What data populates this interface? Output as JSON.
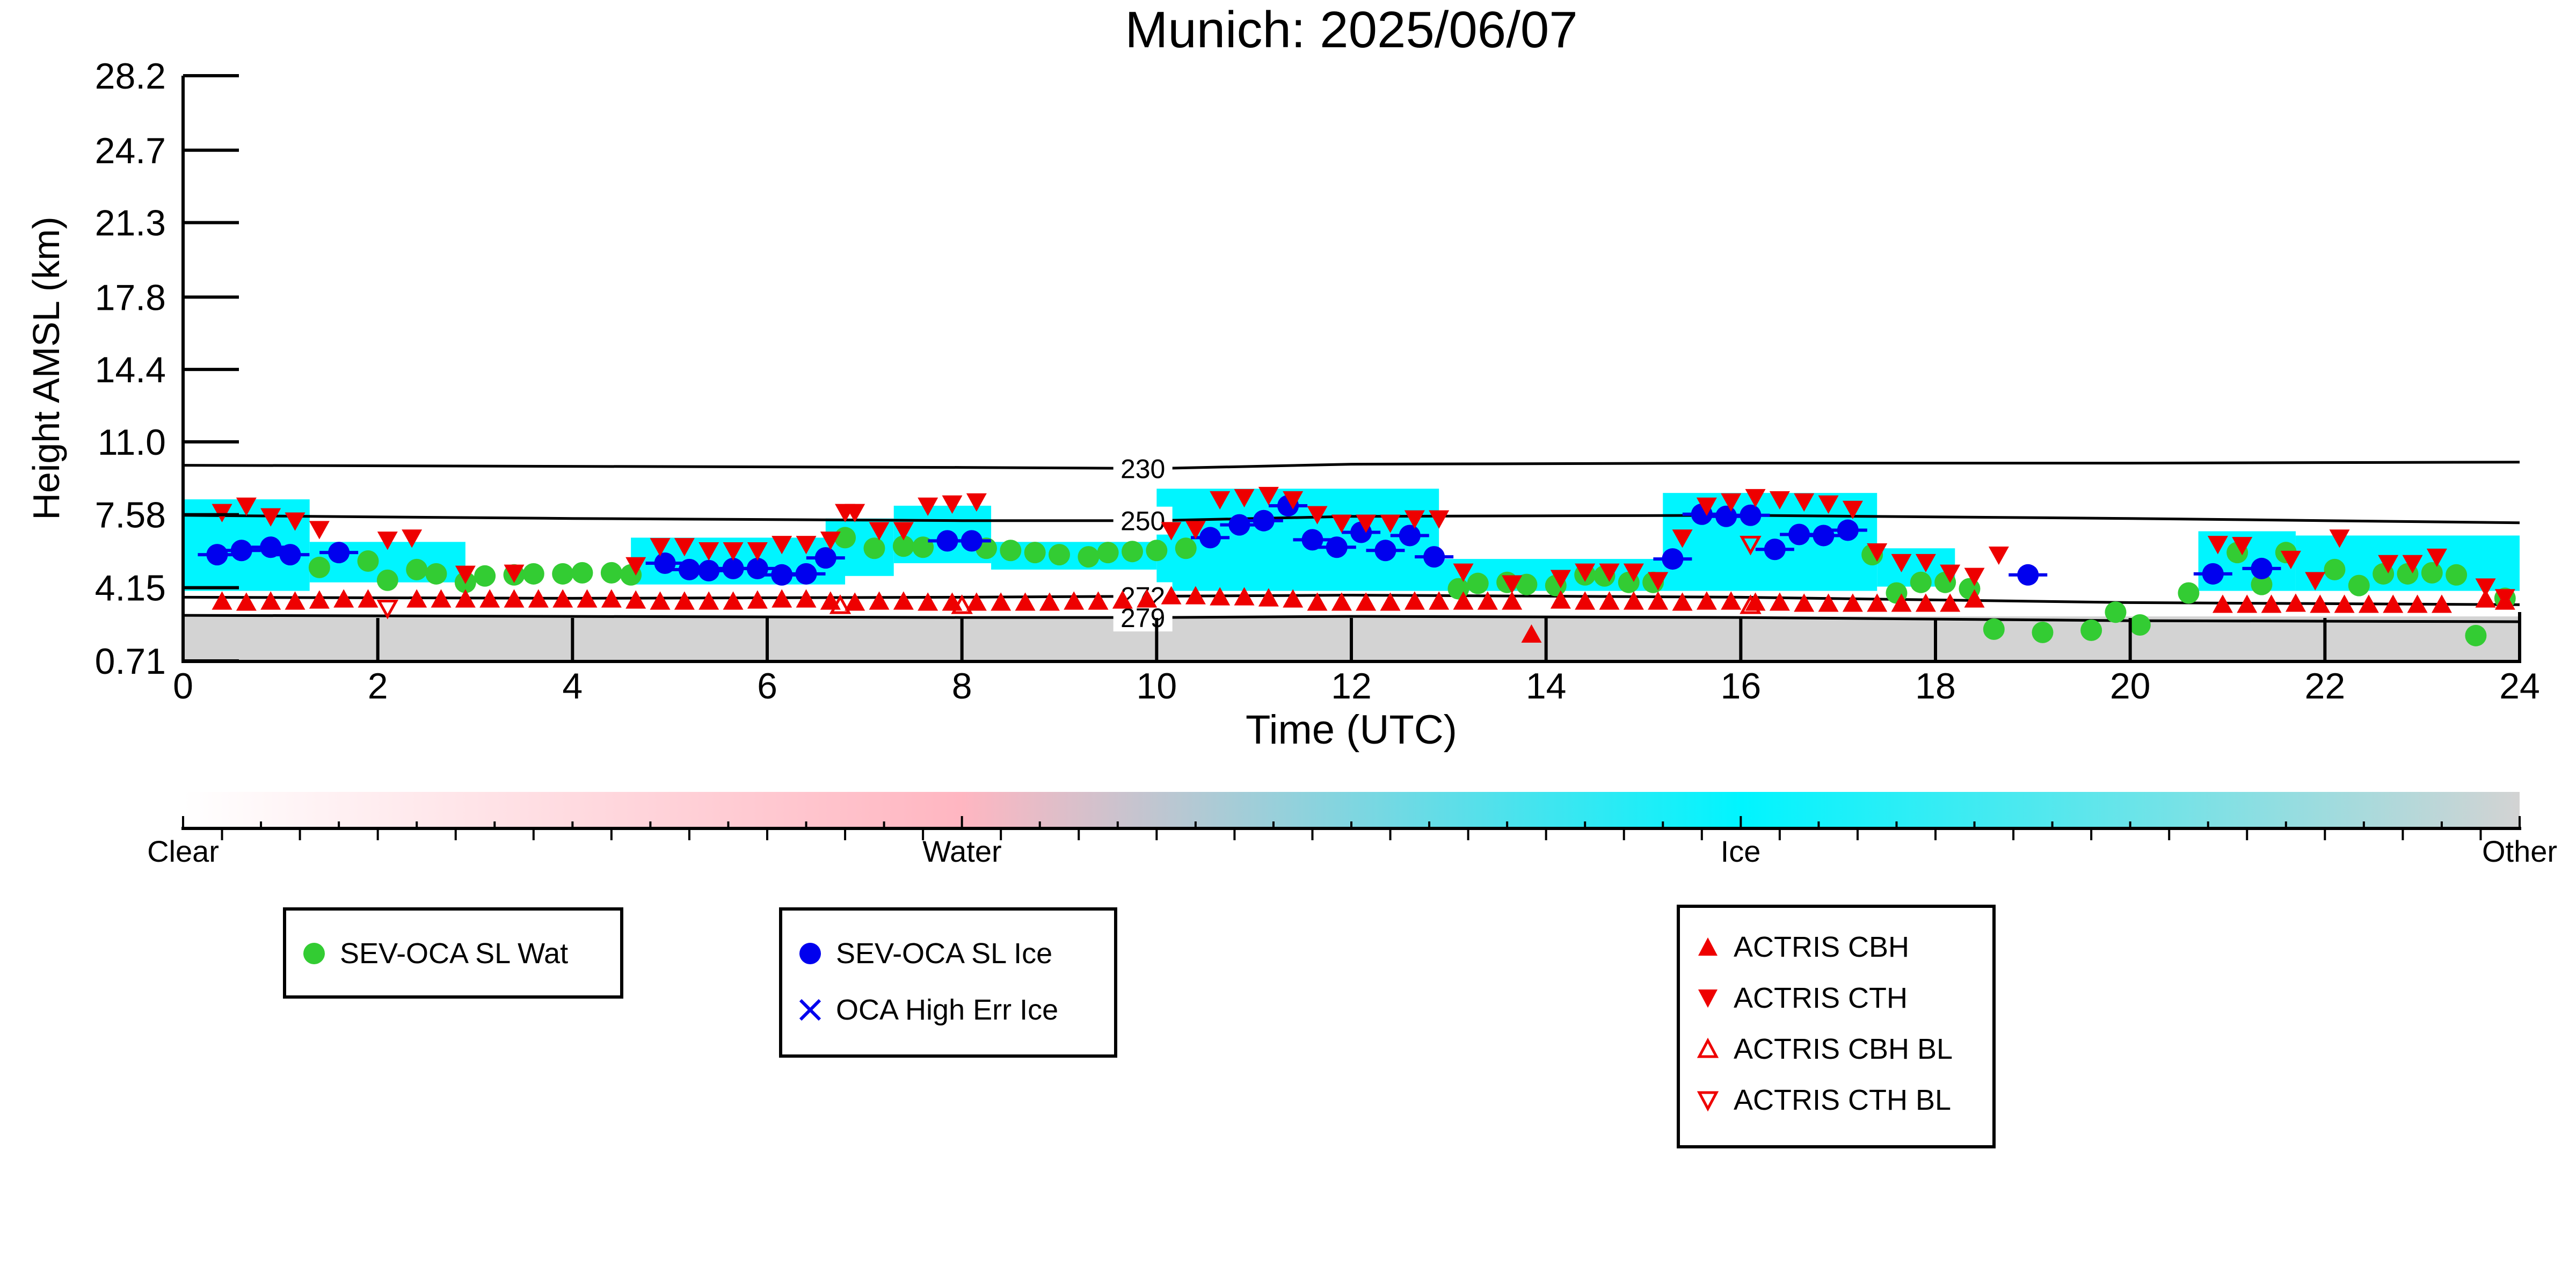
{
  "chart_data": {
    "type": "scatter",
    "title": "Munich: 2025/06/07",
    "xlabel": "Time (UTC)",
    "ylabel": "Height AMSL (km)",
    "xlim": [
      0,
      24
    ],
    "xticks": [
      0,
      2,
      4,
      6,
      8,
      10,
      12,
      14,
      16,
      18,
      20,
      22,
      24
    ],
    "yticks": [
      "0.71",
      "4.15",
      "7.58",
      "11.0",
      "14.4",
      "17.8",
      "21.3",
      "24.7",
      "28.2"
    ],
    "ylim": [
      0.71,
      28.2
    ],
    "colorbar": {
      "labels": [
        "Clear",
        "Water",
        "Ice",
        "Other"
      ],
      "colors": [
        "#ffffff",
        "#ffb6c1",
        "#00f5ff",
        "#d3d3d3"
      ]
    },
    "contours": [
      {
        "label": "230",
        "points": [
          [
            0,
            9.9
          ],
          [
            4,
            9.85
          ],
          [
            8,
            9.8
          ],
          [
            10,
            9.75
          ],
          [
            12,
            9.95
          ],
          [
            16,
            10.0
          ],
          [
            20,
            10.0
          ],
          [
            24,
            10.05
          ]
        ]
      },
      {
        "label": "250",
        "points": [
          [
            0,
            7.55
          ],
          [
            4,
            7.4
          ],
          [
            8,
            7.3
          ],
          [
            10,
            7.3
          ],
          [
            12,
            7.5
          ],
          [
            16,
            7.55
          ],
          [
            20,
            7.4
          ],
          [
            24,
            7.2
          ]
        ]
      },
      {
        "label": "272",
        "points": [
          [
            0,
            3.7
          ],
          [
            4,
            3.65
          ],
          [
            8,
            3.7
          ],
          [
            10,
            3.75
          ],
          [
            12,
            3.8
          ],
          [
            16,
            3.7
          ],
          [
            20,
            3.45
          ],
          [
            24,
            3.35
          ]
        ]
      },
      {
        "label": "279",
        "points": [
          [
            0,
            2.85
          ],
          [
            4,
            2.8
          ],
          [
            8,
            2.75
          ],
          [
            10,
            2.75
          ],
          [
            12,
            2.8
          ],
          [
            16,
            2.75
          ],
          [
            20,
            2.6
          ],
          [
            24,
            2.55
          ]
        ]
      }
    ],
    "series": [
      {
        "name": "SEV-OCA SL Wat",
        "color": "#33cc33",
        "marker": "circle",
        "x": [
          1.4,
          1.9,
          2.1,
          2.4,
          2.6,
          2.9,
          3.1,
          3.4,
          3.6,
          3.9,
          4.1,
          4.4,
          4.6,
          6.8,
          7.1,
          7.4,
          7.6,
          8.25,
          8.5,
          8.75,
          9.0,
          9.3,
          9.5,
          9.75,
          10.0,
          10.3,
          13.1,
          13.3,
          13.6,
          13.8,
          14.1,
          14.4,
          14.6,
          14.85,
          15.1,
          17.35,
          17.6,
          17.85,
          18.1,
          18.35,
          18.6,
          19.1,
          19.6,
          19.85,
          20.1,
          20.6,
          21.1,
          21.35,
          21.6,
          22.1,
          22.35,
          22.6,
          22.85,
          23.1,
          23.35,
          23.55,
          23.85
        ],
        "y": [
          5.1,
          5.4,
          4.5,
          5.0,
          4.8,
          4.4,
          4.7,
          4.75,
          4.8,
          4.8,
          4.85,
          4.85,
          4.75,
          6.5,
          6.0,
          6.1,
          6.05,
          6.0,
          5.9,
          5.8,
          5.7,
          5.6,
          5.8,
          5.85,
          5.9,
          6.0,
          4.1,
          4.35,
          4.4,
          4.3,
          4.25,
          4.75,
          4.7,
          4.4,
          4.4,
          5.7,
          3.9,
          4.4,
          4.4,
          4.1,
          2.2,
          2.05,
          2.15,
          3.0,
          2.4,
          3.9,
          5.8,
          4.3,
          5.8,
          5.0,
          4.25,
          4.8,
          4.8,
          4.85,
          4.75,
          1.9,
          3.65
        ]
      },
      {
        "name": "SEV-OCA SL Ice",
        "color": "#0000ee",
        "marker": "circle",
        "x": [
          0.35,
          0.6,
          0.9,
          1.1,
          1.6,
          4.95,
          5.2,
          5.4,
          5.65,
          5.9,
          6.15,
          6.4,
          6.6,
          7.85,
          8.1,
          10.55,
          10.85,
          11.1,
          11.35,
          11.6,
          11.85,
          12.1,
          12.35,
          12.6,
          12.85,
          15.3,
          15.6,
          15.85,
          16.1,
          16.35,
          16.6,
          16.85,
          17.1,
          18.95,
          20.85,
          21.35
        ],
        "y": [
          5.7,
          5.9,
          6.05,
          5.7,
          5.8,
          5.3,
          5.0,
          4.95,
          5.05,
          5.05,
          4.75,
          4.8,
          5.55,
          6.35,
          6.35,
          6.5,
          7.1,
          7.3,
          8.0,
          6.4,
          6.05,
          6.75,
          5.9,
          6.6,
          5.6,
          5.5,
          7.6,
          7.5,
          7.55,
          5.95,
          6.65,
          6.6,
          6.85,
          4.75,
          4.8,
          5.05
        ]
      },
      {
        "name": "OCA High Err Ice",
        "color": "#0000ee",
        "marker": "x",
        "x": [],
        "y": []
      },
      {
        "name": "ACTRIS CBH",
        "color": "#ee0000",
        "marker": "triangle-up-filled",
        "x": [
          0.4,
          0.65,
          0.9,
          1.15,
          1.4,
          1.65,
          1.9,
          2.4,
          2.65,
          2.9,
          3.15,
          3.4,
          3.65,
          3.9,
          4.15,
          4.4,
          4.65,
          4.9,
          5.15,
          5.4,
          5.65,
          5.9,
          6.15,
          6.4,
          6.65,
          6.9,
          7.15,
          7.4,
          7.65,
          7.9,
          8.15,
          8.4,
          8.65,
          8.9,
          9.15,
          9.4,
          9.65,
          9.9,
          10.15,
          10.4,
          10.65,
          10.9,
          11.15,
          11.4,
          11.65,
          11.9,
          12.15,
          12.4,
          12.65,
          12.9,
          13.15,
          13.4,
          13.65,
          13.85,
          14.15,
          14.4,
          14.65,
          14.9,
          15.15,
          15.4,
          15.65,
          15.9,
          16.15,
          16.4,
          16.65,
          16.9,
          17.15,
          17.4,
          17.65,
          17.9,
          18.15,
          18.4,
          20.95,
          21.2,
          21.45,
          21.7,
          21.95,
          22.2,
          22.45,
          22.7,
          22.95,
          23.2,
          23.65,
          23.85
        ],
        "y": [
          3.5,
          3.45,
          3.5,
          3.5,
          3.55,
          3.6,
          3.6,
          3.6,
          3.6,
          3.6,
          3.6,
          3.6,
          3.6,
          3.6,
          3.6,
          3.6,
          3.55,
          3.5,
          3.5,
          3.5,
          3.5,
          3.55,
          3.6,
          3.6,
          3.5,
          3.45,
          3.5,
          3.5,
          3.45,
          3.45,
          3.45,
          3.45,
          3.45,
          3.45,
          3.5,
          3.5,
          3.55,
          3.6,
          3.75,
          3.75,
          3.7,
          3.7,
          3.65,
          3.6,
          3.45,
          3.45,
          3.45,
          3.45,
          3.5,
          3.5,
          3.5,
          3.5,
          3.5,
          1.95,
          3.55,
          3.5,
          3.5,
          3.5,
          3.5,
          3.45,
          3.5,
          3.5,
          3.45,
          3.45,
          3.4,
          3.4,
          3.4,
          3.4,
          3.4,
          3.4,
          3.4,
          3.6,
          3.35,
          3.35,
          3.35,
          3.4,
          3.35,
          3.35,
          3.35,
          3.35,
          3.35,
          3.35,
          3.6,
          3.5
        ]
      },
      {
        "name": "ACTRIS CTH",
        "color": "#ee0000",
        "marker": "triangle-down-filled",
        "x": [
          0.4,
          0.65,
          0.9,
          1.15,
          1.4,
          2.1,
          2.35,
          2.9,
          3.4,
          4.65,
          4.9,
          5.15,
          5.4,
          5.65,
          5.9,
          6.15,
          6.4,
          6.65,
          6.8,
          6.9,
          7.15,
          7.4,
          7.65,
          7.9,
          8.15,
          10.15,
          10.4,
          10.65,
          10.9,
          11.15,
          11.4,
          11.65,
          11.9,
          12.15,
          12.4,
          12.65,
          12.9,
          13.15,
          13.65,
          14.15,
          14.4,
          14.65,
          14.9,
          15.15,
          15.4,
          15.65,
          15.9,
          16.15,
          16.4,
          16.65,
          16.9,
          17.15,
          17.4,
          17.65,
          17.9,
          18.15,
          18.4,
          18.65,
          20.9,
          21.15,
          21.65,
          21.9,
          22.15,
          22.65,
          22.9,
          23.15,
          23.65,
          23.85
        ],
        "y": [
          7.7,
          8.0,
          7.5,
          7.3,
          6.9,
          6.4,
          6.5,
          4.8,
          4.85,
          5.2,
          6.1,
          6.1,
          5.9,
          5.9,
          5.9,
          6.2,
          6.2,
          6.4,
          7.7,
          7.7,
          6.85,
          6.85,
          8.0,
          8.1,
          8.2,
          6.85,
          6.9,
          8.3,
          8.4,
          8.5,
          8.3,
          7.6,
          7.2,
          7.2,
          7.2,
          7.4,
          7.4,
          4.9,
          4.35,
          4.6,
          4.9,
          4.9,
          4.9,
          4.5,
          6.5,
          8.0,
          8.2,
          8.4,
          8.3,
          8.2,
          8.1,
          7.85,
          5.85,
          5.35,
          5.35,
          4.85,
          4.7,
          5.7,
          6.2,
          6.15,
          5.5,
          4.5,
          6.5,
          5.3,
          5.3,
          5.6,
          4.2,
          3.7
        ]
      },
      {
        "name": "ACTRIS CBH BL",
        "color": "#ee0000",
        "marker": "triangle-up-open",
        "x": [
          6.75,
          8.0,
          16.1
        ],
        "y": [
          3.3,
          3.3,
          3.3
        ]
      },
      {
        "name": "ACTRIS CTH BL",
        "color": "#ee0000",
        "marker": "triangle-down-open",
        "x": [
          2.1,
          16.1
        ],
        "y": [
          3.2,
          6.2
        ]
      }
    ],
    "legend": {
      "group1": [
        {
          "label": "SEV-OCA SL Wat",
          "marker": "circle",
          "color": "#33cc33"
        }
      ],
      "group2": [
        {
          "label": "SEV-OCA SL Ice",
          "marker": "circle",
          "color": "#0000ee"
        },
        {
          "label": "OCA High Err Ice",
          "marker": "x",
          "color": "#0000ee"
        }
      ],
      "group3": [
        {
          "label": "ACTRIS CBH",
          "marker": "triangle-up-filled",
          "color": "#ee0000"
        },
        {
          "label": "ACTRIS CTH",
          "marker": "triangle-down-filled",
          "color": "#ee0000"
        },
        {
          "label": "ACTRIS CBH BL",
          "marker": "triangle-up-open",
          "color": "#ee0000"
        },
        {
          "label": "ACTRIS CTH BL",
          "marker": "triangle-down-open",
          "color": "#ee0000"
        }
      ]
    }
  }
}
